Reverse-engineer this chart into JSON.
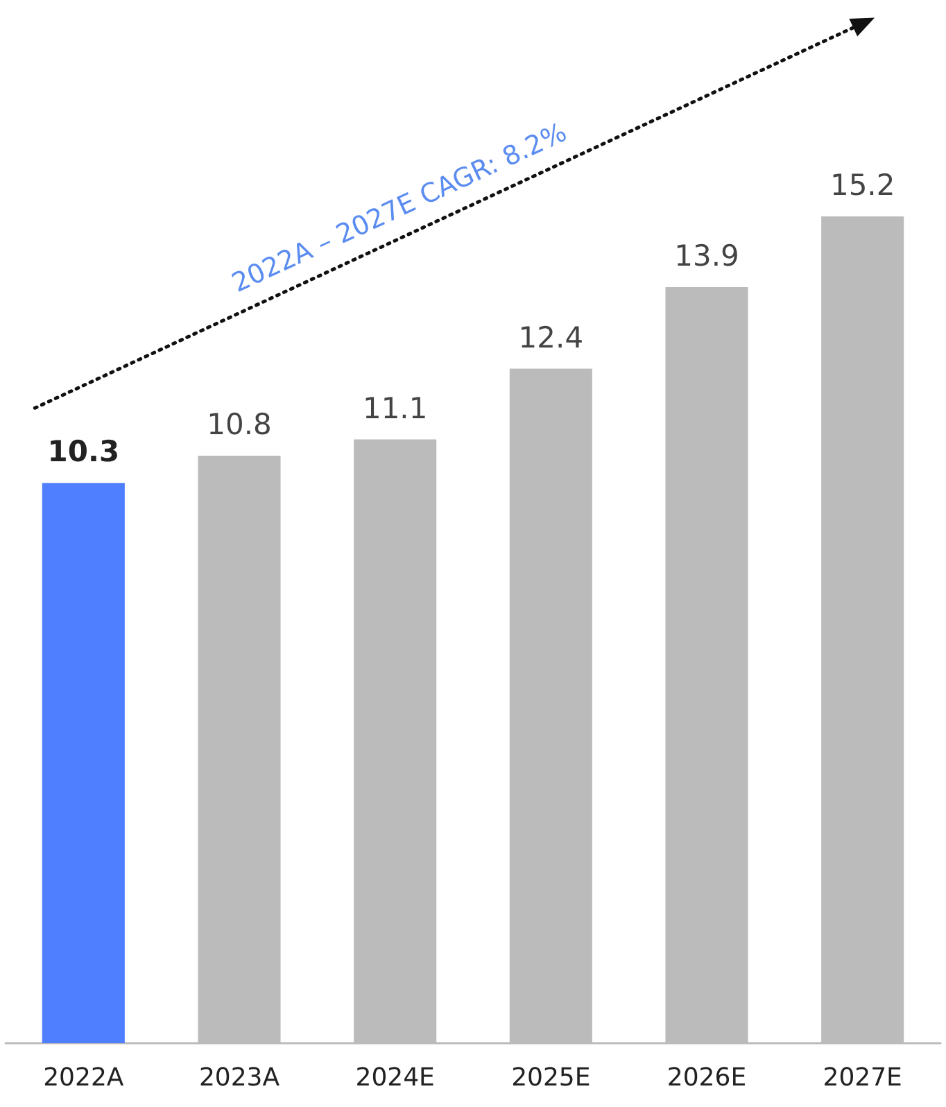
{
  "chart_data": {
    "type": "bar",
    "categories": [
      "2022A",
      "2023A",
      "2024E",
      "2025E",
      "2026E",
      "2027E"
    ],
    "values": [
      10.3,
      10.8,
      11.1,
      12.4,
      13.9,
      15.2
    ],
    "colors": [
      "#4f7fff",
      "#bbbbbb",
      "#bbbbbb",
      "#bbbbbb",
      "#bbbbbb",
      "#bbbbbb"
    ],
    "data_labels": true,
    "tick_labels": "x",
    "annotations": [
      "2022A – 2027E CAGR: 8.2%"
    ]
  }
}
